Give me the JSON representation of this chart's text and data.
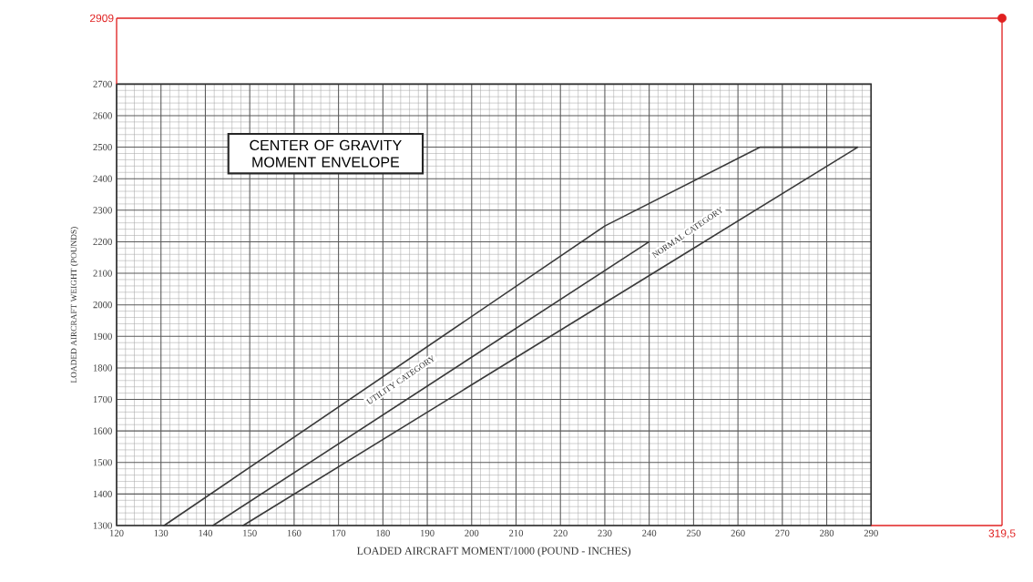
{
  "chart_data": {
    "type": "line",
    "title": "CENTER OF GRAVITY MOMENT ENVELOPE",
    "xlabel": "LOADED AIRCRAFT MOMENT/1000 (POUND - INCHES)",
    "ylabel": "LOADED AIRCRAFT WEIGHT (POUNDS)",
    "xlim": [
      120,
      319.5
    ],
    "ylim": [
      1300,
      2909
    ],
    "xticks": [
      120,
      130,
      140,
      150,
      160,
      170,
      180,
      190,
      200,
      210,
      220,
      230,
      240,
      250,
      260,
      270,
      280,
      290
    ],
    "yticks": [
      1300,
      1400,
      1500,
      1600,
      1700,
      1800,
      1900,
      2000,
      2100,
      2200,
      2300,
      2400,
      2500,
      2600,
      2700
    ],
    "grid": true,
    "marker": "none",
    "line_style": "solid",
    "series": [
      {
        "color": "#3a3a3a",
        "x": [
          130.7,
          230,
          265,
          287,
          148.5
        ],
        "values": [
          1300,
          2250,
          2500,
          2500,
          1300
        ]
      },
      {
        "color": "#3a3a3a",
        "x": [
          224.8,
          240,
          141.7
        ],
        "values": [
          2200,
          2200,
          1300
        ]
      },
      {
        "type": "scatter",
        "marker": "circle",
        "color": "#e02020",
        "x": [
          319.5
        ],
        "values": [
          2909
        ]
      }
    ],
    "ref_lines": [
      {
        "axis": "y",
        "value": 2909,
        "label": "2909",
        "color": "#e02020"
      },
      {
        "axis": "x",
        "value": 319.5,
        "label": "319,5",
        "color": "#e02020"
      }
    ],
    "annotations": [
      "UTILITY CATEGORY",
      "NORMAL CATEGORY"
    ]
  }
}
